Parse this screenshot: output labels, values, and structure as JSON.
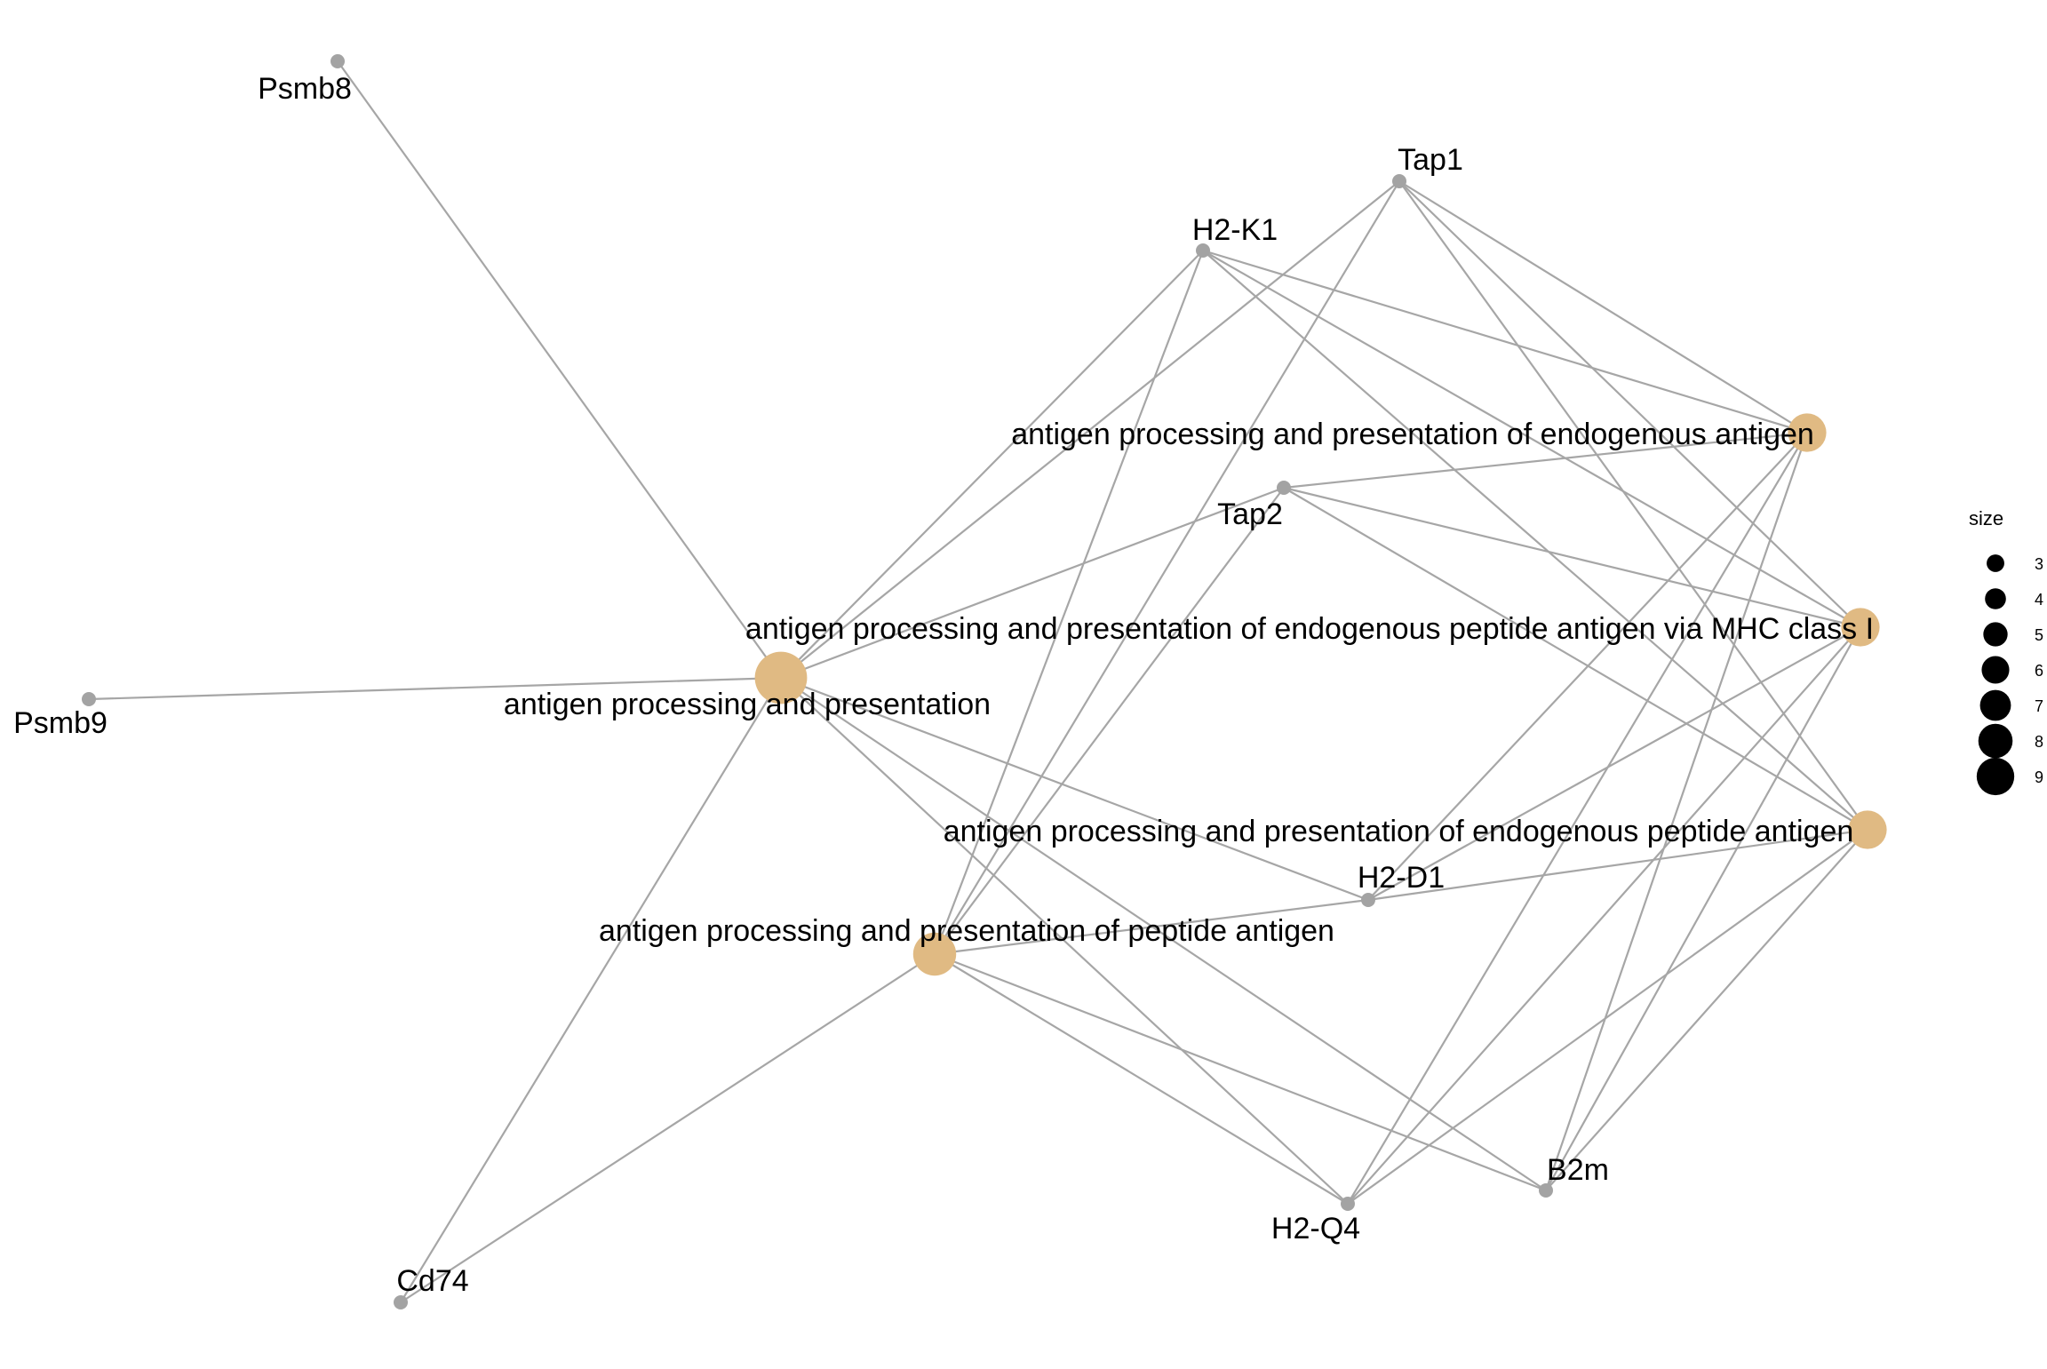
{
  "colors": {
    "edge": "#a6a6a6",
    "gene_node": "#a3a3a3",
    "term_node": "#e0ba83",
    "legend_dot": "#000000",
    "background": "#ffffff"
  },
  "genes": [
    "Psmb8",
    "Psmb9",
    "Tap1",
    "H2-K1",
    "Tap2",
    "H2-D1",
    "H2-Q4",
    "B2m",
    "Cd74"
  ],
  "terms": [
    {
      "name": "antigen processing and presentation",
      "size": 9
    },
    {
      "name": "antigen processing and presentation of endogenous antigen",
      "size": 6
    },
    {
      "name": "antigen processing and presentation of endogenous peptide antigen via MHC class I",
      "size": 6
    },
    {
      "name": "antigen processing and presentation of endogenous peptide antigen",
      "size": 6
    },
    {
      "name": "antigen processing and presentation of peptide antigen",
      "size": 7
    }
  ],
  "edges": [
    [
      "antigen processing and presentation",
      "Psmb8"
    ],
    [
      "antigen processing and presentation",
      "Psmb9"
    ],
    [
      "antigen processing and presentation",
      "Cd74"
    ],
    [
      "antigen processing and presentation",
      "H2-K1"
    ],
    [
      "antigen processing and presentation",
      "Tap1"
    ],
    [
      "antigen processing and presentation",
      "Tap2"
    ],
    [
      "antigen processing and presentation",
      "H2-D1"
    ],
    [
      "antigen processing and presentation",
      "H2-Q4"
    ],
    [
      "antigen processing and presentation",
      "B2m"
    ],
    [
      "antigen processing and presentation of peptide antigen",
      "Cd74"
    ],
    [
      "antigen processing and presentation of peptide antigen",
      "H2-K1"
    ],
    [
      "antigen processing and presentation of peptide antigen",
      "Tap1"
    ],
    [
      "antigen processing and presentation of peptide antigen",
      "Tap2"
    ],
    [
      "antigen processing and presentation of peptide antigen",
      "H2-D1"
    ],
    [
      "antigen processing and presentation of peptide antigen",
      "H2-Q4"
    ],
    [
      "antigen processing and presentation of peptide antigen",
      "B2m"
    ],
    [
      "antigen processing and presentation of endogenous antigen",
      "H2-K1"
    ],
    [
      "antigen processing and presentation of endogenous antigen",
      "Tap1"
    ],
    [
      "antigen processing and presentation of endogenous antigen",
      "Tap2"
    ],
    [
      "antigen processing and presentation of endogenous antigen",
      "H2-D1"
    ],
    [
      "antigen processing and presentation of endogenous antigen",
      "H2-Q4"
    ],
    [
      "antigen processing and presentation of endogenous antigen",
      "B2m"
    ],
    [
      "antigen processing and presentation of endogenous peptide antigen via MHC class I",
      "H2-K1"
    ],
    [
      "antigen processing and presentation of endogenous peptide antigen via MHC class I",
      "Tap1"
    ],
    [
      "antigen processing and presentation of endogenous peptide antigen via MHC class I",
      "Tap2"
    ],
    [
      "antigen processing and presentation of endogenous peptide antigen via MHC class I",
      "H2-D1"
    ],
    [
      "antigen processing and presentation of endogenous peptide antigen via MHC class I",
      "H2-Q4"
    ],
    [
      "antigen processing and presentation of endogenous peptide antigen via MHC class I",
      "B2m"
    ],
    [
      "antigen processing and presentation of endogenous peptide antigen",
      "H2-K1"
    ],
    [
      "antigen processing and presentation of endogenous peptide antigen",
      "Tap1"
    ],
    [
      "antigen processing and presentation of endogenous peptide antigen",
      "Tap2"
    ],
    [
      "antigen processing and presentation of endogenous peptide antigen",
      "H2-D1"
    ],
    [
      "antigen processing and presentation of endogenous peptide antigen",
      "H2-Q4"
    ],
    [
      "antigen processing and presentation of endogenous peptide antigen",
      "B2m"
    ]
  ],
  "legend": {
    "title": "size",
    "labels": [
      "3",
      "4",
      "5",
      "6",
      "7",
      "8",
      "9"
    ]
  }
}
